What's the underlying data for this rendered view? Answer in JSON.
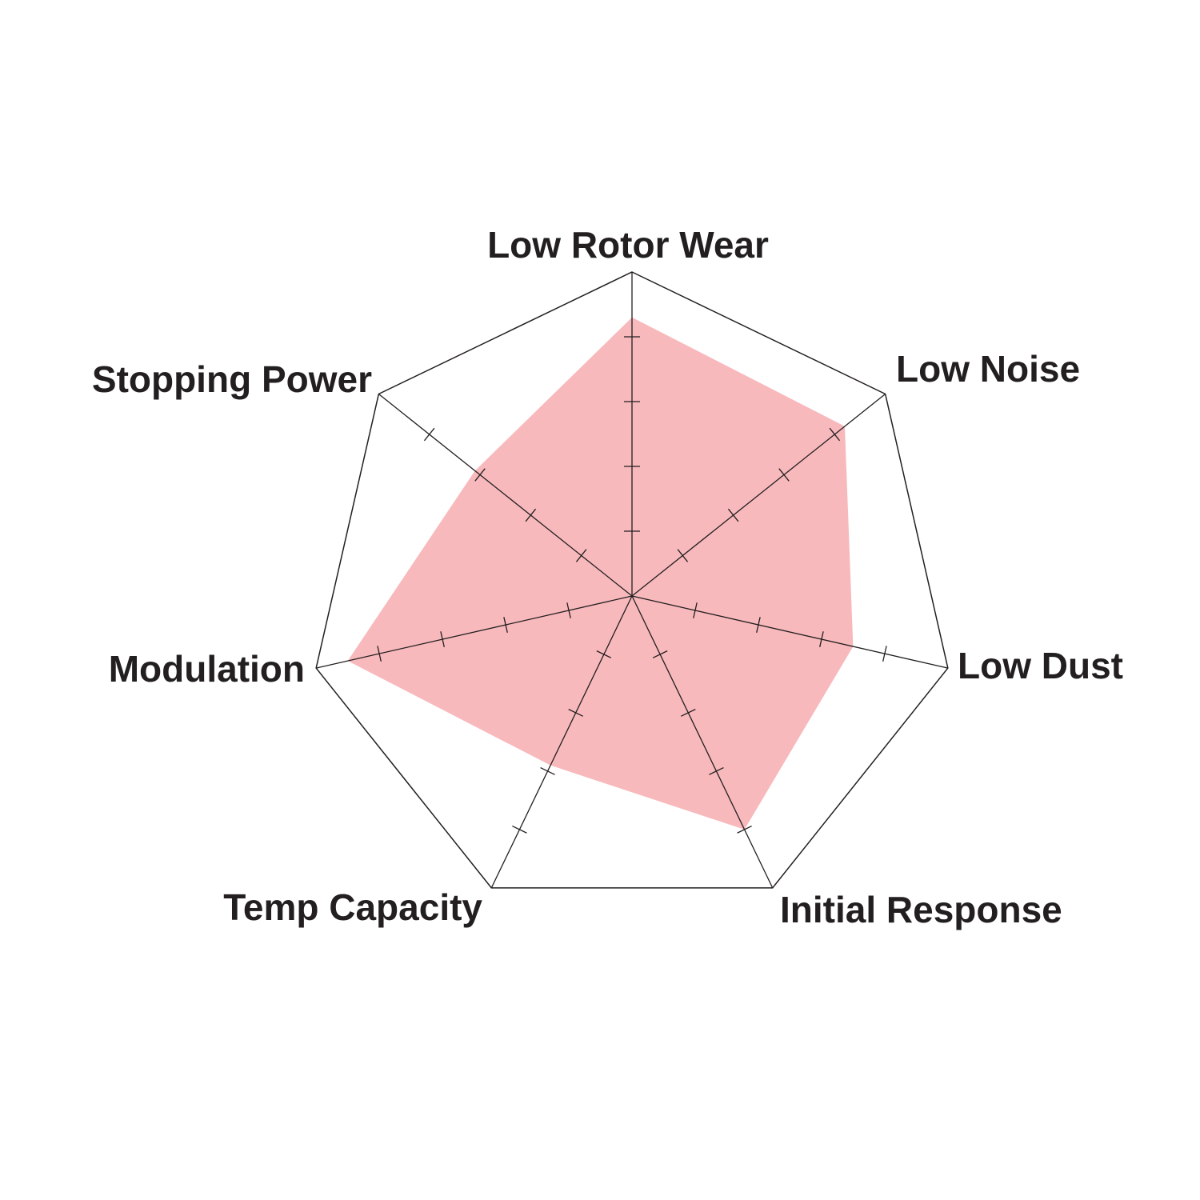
{
  "chart_data": {
    "type": "radar",
    "axes": [
      "Low Rotor Wear",
      "Low Noise",
      "Low Dust",
      "Initial Response",
      "Temp Capacity",
      "Modulation",
      "Stopping Power"
    ],
    "values": [
      4.3,
      4.2,
      3.5,
      4.0,
      2.9,
      4.5,
      3.1
    ],
    "range": [
      0,
      5
    ],
    "tick_step": 1,
    "fill_color": "#f8b9bc",
    "line_color": "#231f20",
    "text_color": "#231f20"
  }
}
